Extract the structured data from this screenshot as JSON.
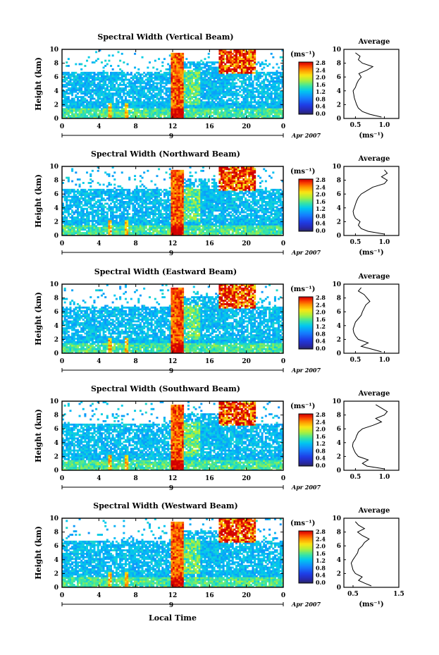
{
  "figure": {
    "ylabel": "Height (km)",
    "xlabel": "Local Time",
    "date_label": "Apr 2007",
    "day_label": "9",
    "colorbar_unit": "(ms⁻¹)",
    "avg_title": "Average",
    "avg_unit": "(ms⁻¹)"
  },
  "chart_data": [
    {
      "type": "heatmap",
      "title": "Spectral Width (Vertical Beam)",
      "xlabel": "Local Time",
      "ylabel": "Height (km)",
      "xlim": [
        0,
        24
      ],
      "ylim": [
        0,
        10
      ],
      "xticks": [
        "0",
        "4",
        "8",
        "12",
        "16",
        "20",
        "0"
      ],
      "yticks": [
        "0",
        "2",
        "4",
        "6",
        "8",
        "10"
      ],
      "colorbar": {
        "label": "(ms⁻¹)",
        "ticks": [
          "0.0",
          "0.4",
          "0.8",
          "1.2",
          "1.6",
          "2.0",
          "2.4",
          "2.8"
        ],
        "range": [
          0,
          2.8
        ]
      },
      "average_profile": {
        "title": "Average",
        "xlabel": "(ms⁻¹)",
        "xticks": [
          "0.5",
          "1.0"
        ],
        "xlim": [
          0.3,
          1.25
        ],
        "height": [
          0.2,
          0.6,
          1.0,
          1.5,
          2.0,
          2.5,
          3.0,
          3.5,
          4.0,
          4.5,
          5.0,
          5.5,
          6.0,
          6.5,
          7.0,
          7.5,
          8.0,
          8.5,
          9.0,
          9.5
        ],
        "values": [
          0.95,
          0.75,
          0.62,
          0.55,
          0.52,
          0.5,
          0.48,
          0.47,
          0.46,
          0.5,
          0.52,
          0.55,
          0.6,
          0.56,
          0.7,
          0.8,
          0.62,
          0.55,
          0.58,
          0.5
        ]
      }
    },
    {
      "type": "heatmap",
      "title": "Spectral Width (Northward Beam)",
      "xlabel": "Local Time",
      "ylabel": "Height (km)",
      "xlim": [
        0,
        24
      ],
      "ylim": [
        0,
        10
      ],
      "xticks": [
        "0",
        "4",
        "8",
        "12",
        "16",
        "20",
        "0"
      ],
      "yticks": [
        "0",
        "2",
        "4",
        "6",
        "8",
        "10"
      ],
      "colorbar": {
        "label": "(ms⁻¹)",
        "ticks": [
          "0.0",
          "0.4",
          "0.8",
          "1.2",
          "1.6",
          "2.0",
          "2.4",
          "2.8"
        ],
        "range": [
          0,
          2.8
        ]
      },
      "average_profile": {
        "title": "Average",
        "xlabel": "(ms⁻¹)",
        "xticks": [
          "0.5",
          "1.0"
        ],
        "xlim": [
          0.3,
          1.25
        ],
        "height": [
          0.2,
          0.6,
          1.0,
          1.5,
          2.0,
          2.5,
          3.0,
          3.5,
          4.0,
          4.5,
          5.0,
          5.5,
          6.0,
          6.5,
          7.0,
          7.5,
          8.0,
          8.5,
          9.0,
          9.5
        ],
        "values": [
          1.0,
          0.72,
          0.6,
          0.55,
          0.58,
          0.5,
          0.47,
          0.46,
          0.48,
          0.5,
          0.52,
          0.55,
          0.6,
          0.7,
          0.8,
          1.0,
          1.05,
          0.95,
          1.05,
          1.0
        ]
      }
    },
    {
      "type": "heatmap",
      "title": "Spectral Width (Eastward Beam)",
      "xlabel": "Local Time",
      "ylabel": "Height (km)",
      "xlim": [
        0,
        24
      ],
      "ylim": [
        0,
        10
      ],
      "xticks": [
        "0",
        "4",
        "8",
        "12",
        "16",
        "20",
        "0"
      ],
      "yticks": [
        "0",
        "2",
        "4",
        "6",
        "8",
        "10"
      ],
      "colorbar": {
        "label": "(ms⁻¹)",
        "ticks": [
          "0.0",
          "0.4",
          "0.8",
          "1.2",
          "1.6",
          "2.0",
          "2.4",
          "2.8"
        ],
        "range": [
          0,
          2.8
        ]
      },
      "average_profile": {
        "title": "Average",
        "xlabel": "",
        "xticks": [
          "0.5",
          "1.0"
        ],
        "xlim": [
          0.3,
          1.25
        ],
        "height": [
          0.2,
          0.6,
          1.0,
          1.5,
          2.0,
          2.5,
          3.0,
          3.5,
          4.0,
          4.5,
          5.0,
          5.5,
          6.0,
          6.5,
          7.0,
          7.5,
          8.0,
          8.5,
          9.0,
          9.5
        ],
        "values": [
          0.95,
          0.78,
          0.6,
          0.72,
          0.55,
          0.5,
          0.47,
          0.46,
          0.48,
          0.5,
          0.55,
          0.6,
          0.62,
          0.65,
          0.68,
          0.75,
          0.7,
          0.65,
          0.55,
          0.6
        ]
      }
    },
    {
      "type": "heatmap",
      "title": "Spectral Width (Southward Beam)",
      "xlabel": "Local Time",
      "ylabel": "Height (km)",
      "xlim": [
        0,
        24
      ],
      "ylim": [
        0,
        10
      ],
      "xticks": [
        "0",
        "4",
        "8",
        "12",
        "16",
        "20",
        "0"
      ],
      "yticks": [
        "0",
        "2",
        "4",
        "6",
        "8",
        "10"
      ],
      "colorbar": {
        "label": "(ms⁻¹)",
        "ticks": [
          "0.0",
          "0.4",
          "0.8",
          "1.2",
          "1.6",
          "2.0",
          "2.4",
          "2.8"
        ],
        "range": [
          0,
          2.8
        ]
      },
      "average_profile": {
        "title": "Average",
        "xlabel": "",
        "xticks": [
          "0.5",
          "1.0"
        ],
        "xlim": [
          0.3,
          1.25
        ],
        "height": [
          0.2,
          0.6,
          1.0,
          1.5,
          2.0,
          2.5,
          3.0,
          3.5,
          4.0,
          4.5,
          5.0,
          5.5,
          6.0,
          6.5,
          7.0,
          7.5,
          8.0,
          8.5,
          9.0,
          9.5
        ],
        "values": [
          1.0,
          0.7,
          0.62,
          0.72,
          0.55,
          0.5,
          0.47,
          0.45,
          0.46,
          0.5,
          0.52,
          0.55,
          0.62,
          0.8,
          0.95,
          0.85,
          1.0,
          1.05,
          0.95,
          0.85
        ]
      }
    },
    {
      "type": "heatmap",
      "title": "Spectral Width (Westward Beam)",
      "xlabel": "Local Time",
      "ylabel": "Height (km)",
      "xlim": [
        0,
        24
      ],
      "ylim": [
        0,
        10
      ],
      "xticks": [
        "0",
        "4",
        "8",
        "12",
        "16",
        "20",
        "0"
      ],
      "yticks": [
        "0",
        "2",
        "4",
        "6",
        "8",
        "10"
      ],
      "colorbar": {
        "label": "(ms⁻¹)",
        "ticks": [
          "0.0",
          "0.4",
          "0.8",
          "1.2",
          "1.6",
          "2.0",
          "2.4",
          "2.8"
        ],
        "range": [
          0,
          2.8
        ]
      },
      "average_profile": {
        "title": "Average",
        "xlabel": "(ms⁻¹)",
        "xticks": [
          "0.5",
          "1.5"
        ],
        "xlim": [
          0.3,
          1.5
        ],
        "height": [
          0.2,
          0.6,
          1.0,
          1.5,
          2.0,
          2.5,
          3.0,
          3.5,
          4.0,
          4.5,
          5.0,
          5.5,
          6.0,
          6.5,
          7.0,
          7.5,
          8.0,
          8.5,
          9.0,
          9.5
        ],
        "values": [
          0.9,
          0.75,
          0.62,
          0.7,
          0.55,
          0.5,
          0.48,
          0.46,
          0.5,
          0.55,
          0.6,
          0.62,
          0.7,
          0.75,
          0.85,
          0.7,
          0.6,
          0.75,
          0.62,
          0.55
        ]
      }
    }
  ]
}
